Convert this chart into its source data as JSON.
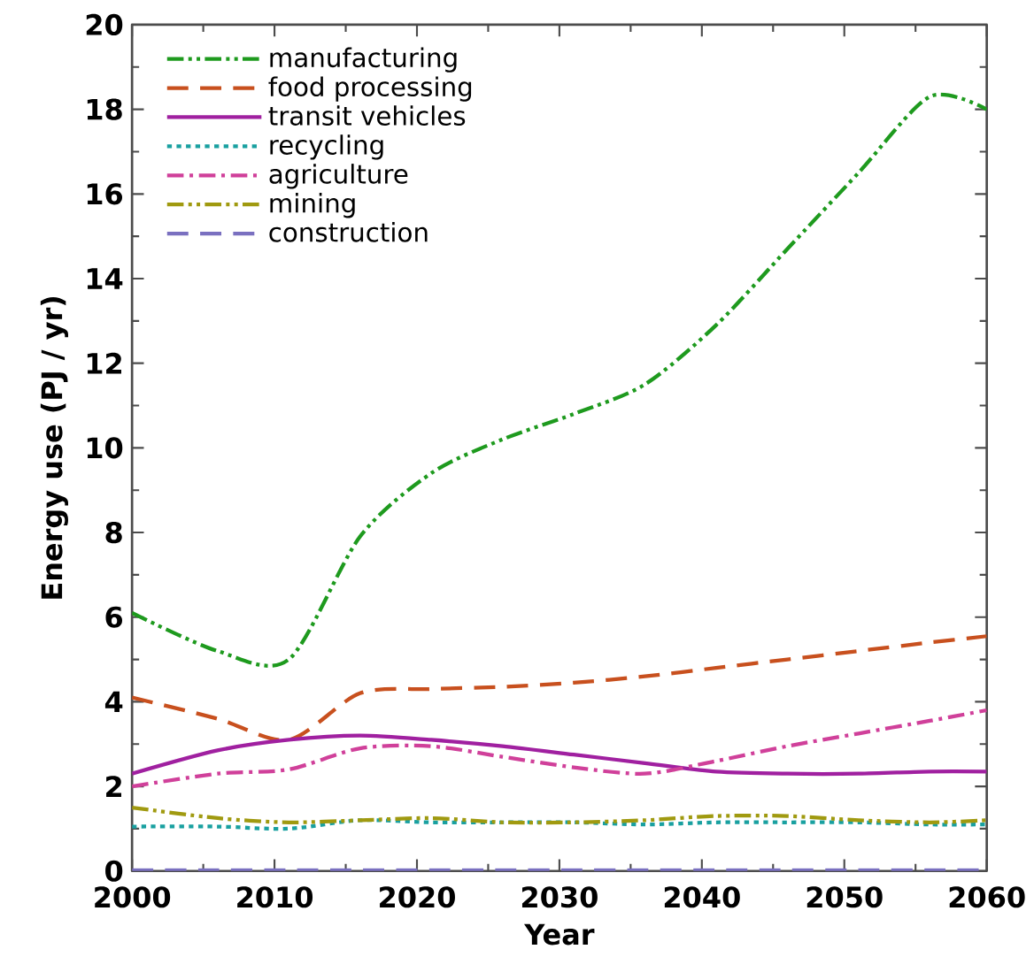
{
  "chart_data": {
    "type": "line",
    "xlabel": "Year",
    "ylabel": "Energy use (PJ / yr)",
    "x": [
      2000,
      2006,
      2011,
      2016,
      2021,
      2026,
      2031,
      2036,
      2041,
      2046,
      2051,
      2056,
      2060
    ],
    "series": [
      {
        "name": "manufacturing",
        "color": "#1e9a1e",
        "line_style": "dashdotdotted",
        "values": [
          6.1,
          5.2,
          5.0,
          7.9,
          9.4,
          10.2,
          10.8,
          11.5,
          12.9,
          14.7,
          16.5,
          18.3,
          18.0
        ]
      },
      {
        "name": "food processing",
        "color": "#c8501e",
        "line_style": "dashed",
        "values": [
          4.1,
          3.6,
          3.1,
          4.2,
          4.3,
          4.35,
          4.45,
          4.6,
          4.8,
          5.0,
          5.2,
          5.4,
          5.55
        ]
      },
      {
        "name": "transit vehicles",
        "color": "#a020a0",
        "line_style": "solid",
        "values": [
          2.3,
          2.85,
          3.1,
          3.2,
          3.1,
          2.95,
          2.75,
          2.55,
          2.35,
          2.3,
          2.3,
          2.35,
          2.35
        ]
      },
      {
        "name": "recycling",
        "color": "#19a0a0",
        "line_style": "dotted",
        "values": [
          1.05,
          1.05,
          1.0,
          1.2,
          1.15,
          1.15,
          1.15,
          1.1,
          1.15,
          1.15,
          1.15,
          1.1,
          1.1
        ]
      },
      {
        "name": "agriculture",
        "color": "#d0409a",
        "line_style": "dashdotted",
        "values": [
          2.0,
          2.3,
          2.4,
          2.9,
          2.95,
          2.7,
          2.45,
          2.3,
          2.6,
          2.95,
          3.25,
          3.55,
          3.8
        ]
      },
      {
        "name": "mining",
        "color": "#a09a10",
        "line_style": "dashdotdotted",
        "values": [
          1.5,
          1.25,
          1.15,
          1.2,
          1.25,
          1.15,
          1.15,
          1.2,
          1.3,
          1.3,
          1.2,
          1.15,
          1.2
        ]
      },
      {
        "name": "construction",
        "color": "#7a70c0",
        "line_style": "dashed",
        "values": [
          0.02,
          0.02,
          0.02,
          0.02,
          0.02,
          0.02,
          0.02,
          0.02,
          0.02,
          0.02,
          0.02,
          0.02,
          0.02
        ]
      }
    ],
    "xlim": [
      2000,
      2060
    ],
    "xticks": [
      2000,
      2010,
      2020,
      2030,
      2040,
      2050,
      2060
    ],
    "ylim": [
      0,
      20
    ],
    "yticks": [
      0,
      2,
      4,
      6,
      8,
      10,
      12,
      14,
      16,
      18,
      20
    ],
    "grid": false,
    "legend": "top left",
    "marker": "none"
  }
}
